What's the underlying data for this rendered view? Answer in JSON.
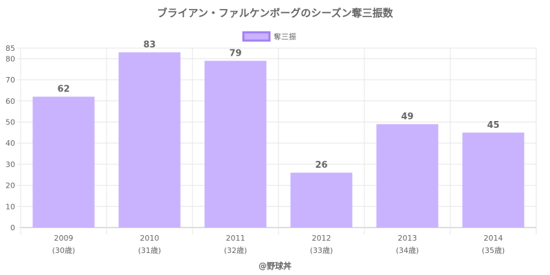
{
  "chart_data": {
    "type": "bar",
    "title": "ブライアン・ファルケンボーグのシーズン奪三振数",
    "categories": [
      "2009",
      "2010",
      "2011",
      "2012",
      "2013",
      "2014"
    ],
    "sub_labels": [
      "(30歳)",
      "(31歳)",
      "(32歳)",
      "(33歳)",
      "(34歳)",
      "(35歳)"
    ],
    "series": [
      {
        "name": "奪三振",
        "values": [
          62,
          83,
          79,
          26,
          49,
          45
        ]
      }
    ],
    "ylim": [
      0,
      85
    ],
    "yticks": [
      0,
      10,
      20,
      30,
      40,
      50,
      60,
      70,
      80,
      85
    ],
    "grid": true,
    "legend": "top-center",
    "bar_color": "#c9b3ff",
    "bar_border_color": "#a27ef2",
    "footer": "@野球丼"
  }
}
